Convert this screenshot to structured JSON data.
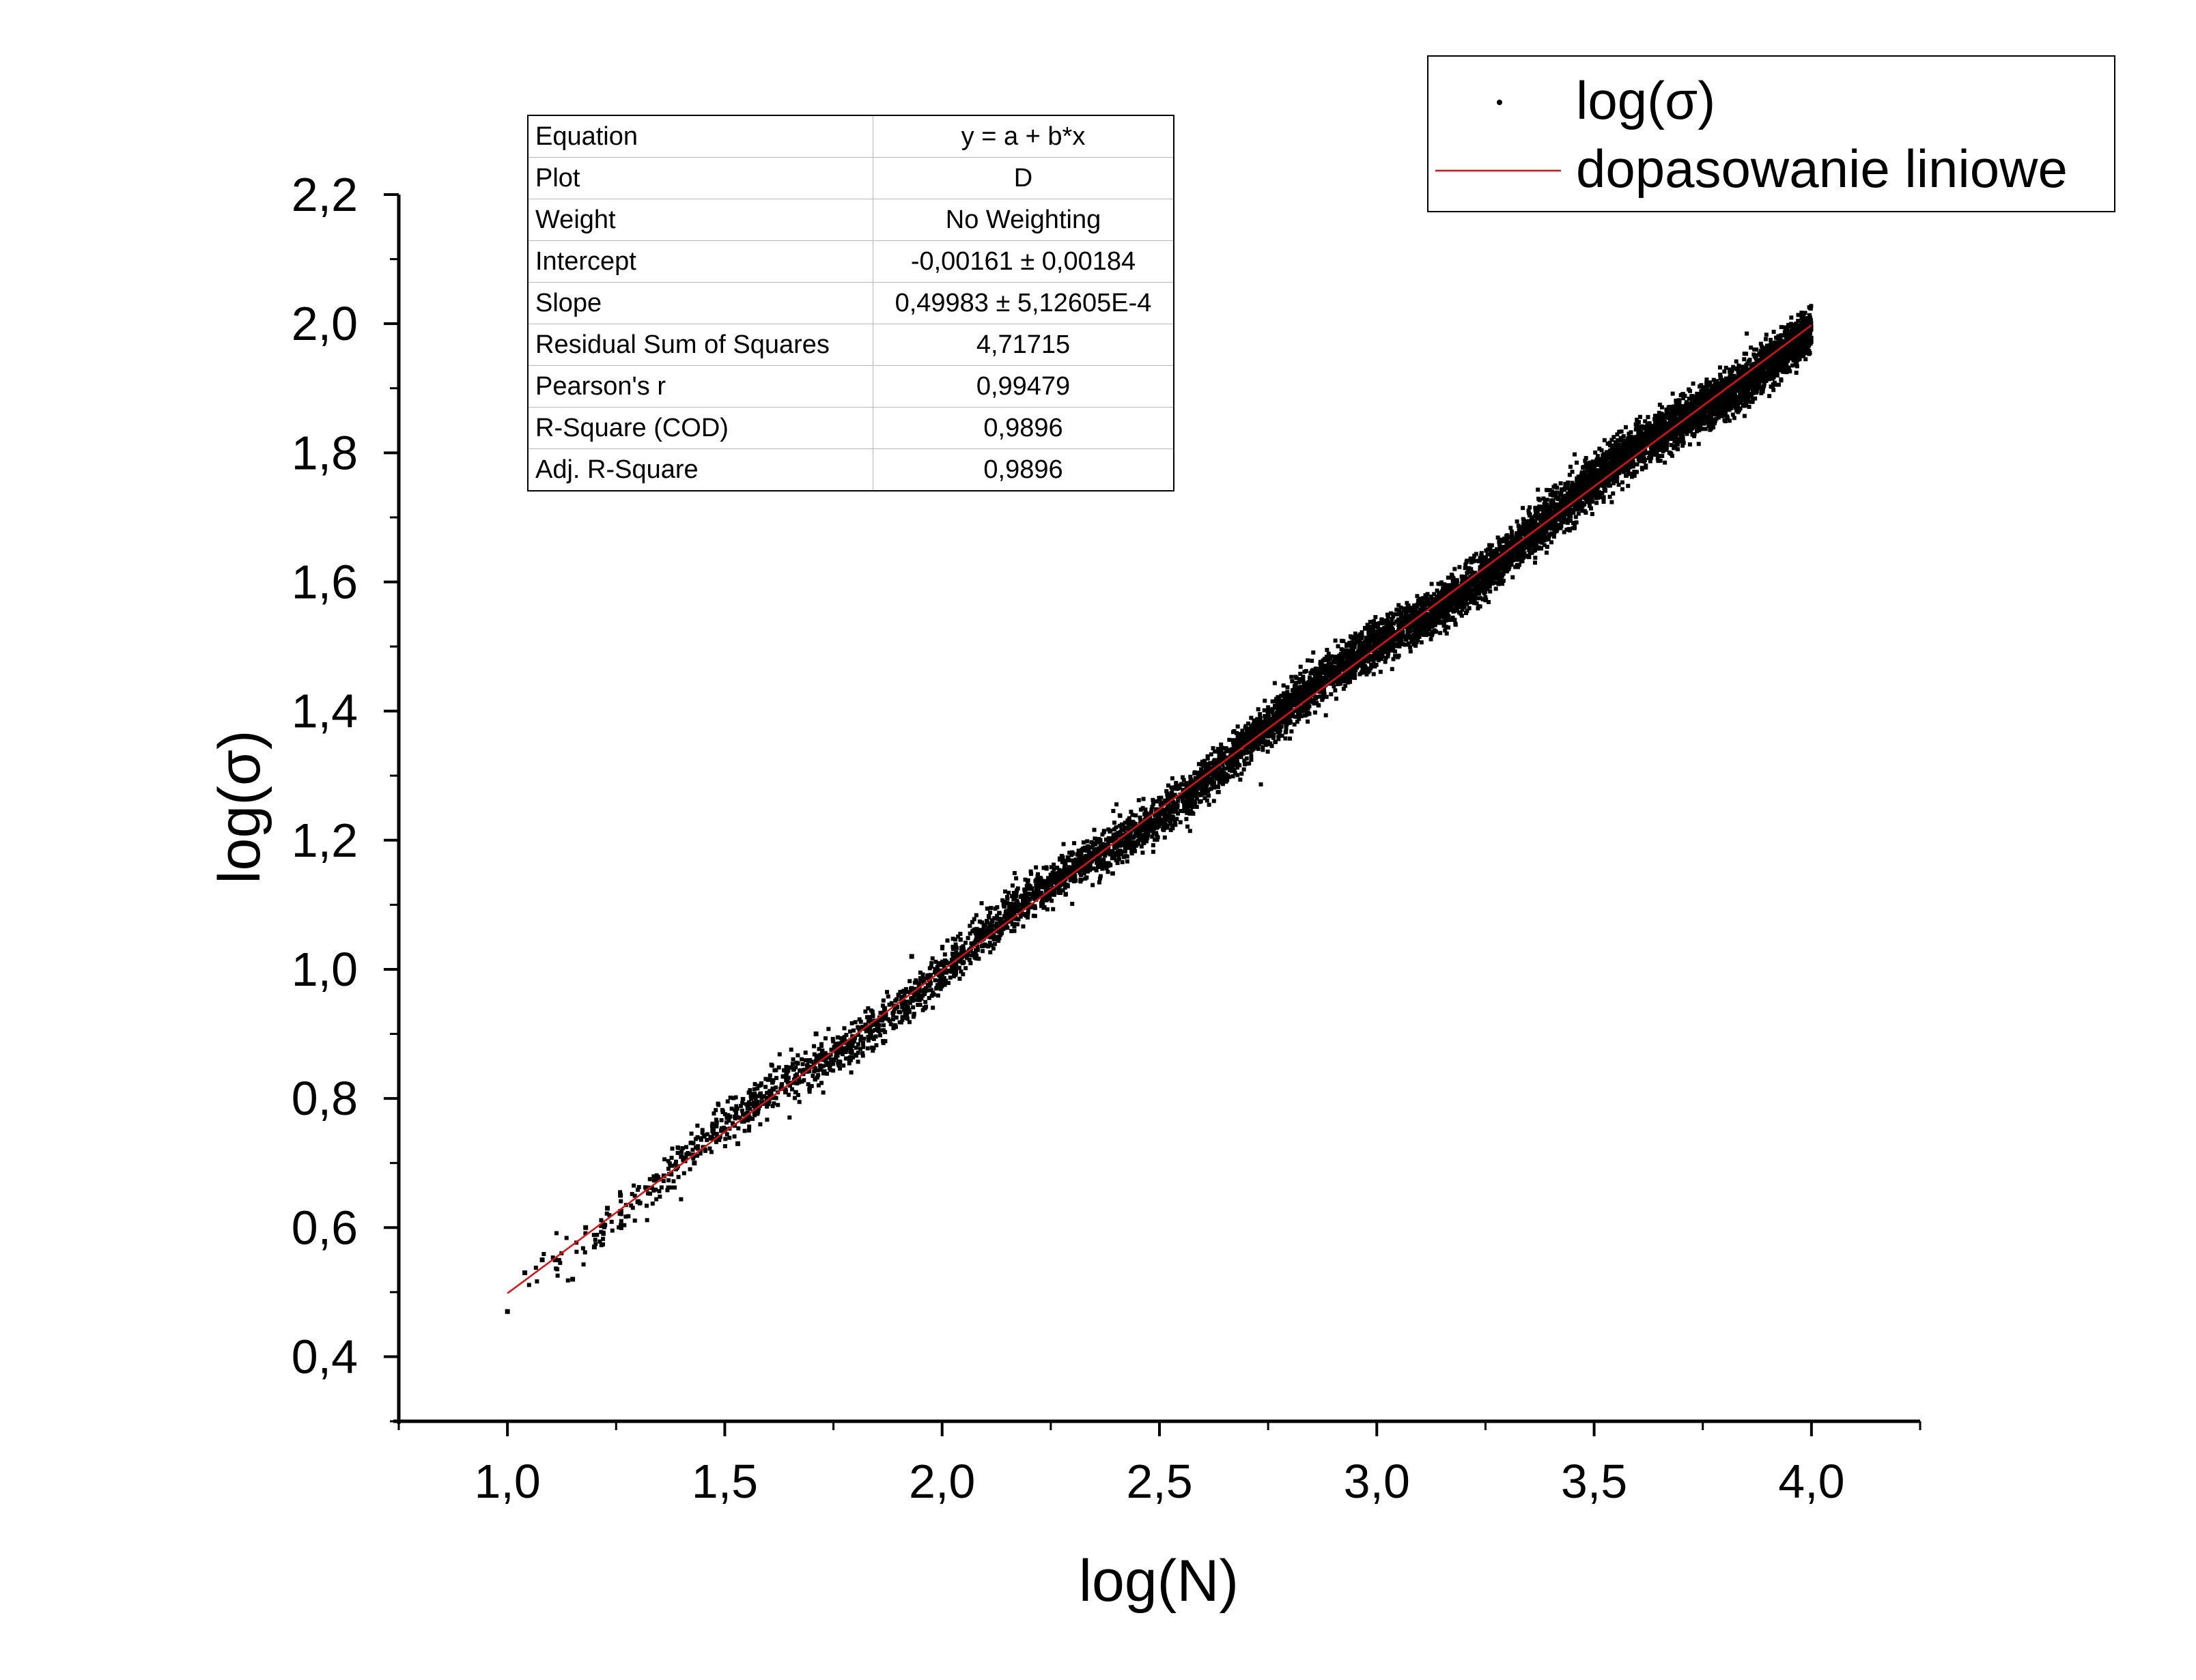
{
  "chart_data": {
    "type": "scatter",
    "xlabel": "log(N)",
    "ylabel": "log(σ)",
    "xlim": [
      0.75,
      4.25
    ],
    "ylim": [
      0.3,
      2.2
    ],
    "x_ticks": [
      1.0,
      1.5,
      2.0,
      2.5,
      3.0,
      3.5,
      4.0
    ],
    "x_tick_labels": [
      "1,0",
      "1,5",
      "2,0",
      "2,5",
      "3,0",
      "3,5",
      "4,0"
    ],
    "y_ticks": [
      0.4,
      0.6,
      0.8,
      1.0,
      1.2,
      1.4,
      1.6,
      1.8,
      2.0,
      2.2
    ],
    "y_tick_labels": [
      "0,4",
      "0,6",
      "0,8",
      "1,0",
      "1,2",
      "1,4",
      "1,6",
      "1,8",
      "2,0",
      "2,2"
    ],
    "grid": false,
    "legend_position": "top-right",
    "series": [
      {
        "name": "log(σ)",
        "kind": "scatter",
        "color": "#000000",
        "sample_points": [
          [
            1.0,
            0.47
          ],
          [
            1.04,
            0.53
          ],
          [
            1.08,
            0.55
          ],
          [
            1.11,
            0.55
          ],
          [
            1.15,
            0.52
          ],
          [
            1.18,
            0.6
          ],
          [
            1.2,
            0.57
          ],
          [
            1.23,
            0.63
          ],
          [
            1.26,
            0.65
          ],
          [
            1.3,
            0.64
          ],
          [
            1.32,
            0.66
          ],
          [
            1.36,
            0.68
          ],
          [
            1.4,
            0.71
          ],
          [
            1.43,
            0.7
          ],
          [
            1.47,
            0.74
          ],
          [
            1.5,
            0.75
          ],
          [
            1.53,
            0.73
          ],
          [
            1.57,
            0.78
          ],
          [
            1.6,
            0.8
          ],
          [
            1.64,
            0.81
          ],
          [
            1.68,
            0.84
          ],
          [
            1.71,
            0.9
          ],
          [
            1.75,
            0.86
          ],
          [
            1.79,
            0.89
          ],
          [
            1.83,
            0.91
          ],
          [
            1.87,
            0.93
          ],
          [
            1.9,
            0.96
          ],
          [
            1.93,
            1.02
          ],
          [
            1.96,
            0.94
          ],
          [
            2.0,
            0.99
          ],
          [
            2.04,
            1.02
          ],
          [
            2.08,
            1.05
          ],
          [
            2.12,
            1.06
          ],
          [
            2.16,
            1.09
          ],
          [
            2.2,
            1.1
          ],
          [
            2.24,
            1.12
          ],
          [
            2.28,
            1.15
          ],
          [
            2.32,
            1.16
          ],
          [
            2.36,
            1.18
          ],
          [
            2.4,
            1.2
          ]
        ]
      },
      {
        "name": "dopasowanie liniowe",
        "kind": "line",
        "color": "#e01010",
        "intercept": -0.00161,
        "slope": 0.49983,
        "x_range": [
          1.0,
          4.0
        ]
      }
    ],
    "scatter_cloud": {
      "x_from": 1.0,
      "x_to": 4.0,
      "count": 9000,
      "residual_sd": 0.017,
      "y_max_seen": 2.07,
      "y_min_seen": 0.47
    }
  },
  "fit_table": [
    {
      "label": "Equation",
      "value": "y = a + b*x"
    },
    {
      "label": "Plot",
      "value": "D"
    },
    {
      "label": "Weight",
      "value": "No Weighting"
    },
    {
      "label": "Intercept",
      "value": "-0,00161 ± 0,00184"
    },
    {
      "label": "Slope",
      "value": "0,49983 ± 5,12605E-4"
    },
    {
      "label": "Residual Sum of Squares",
      "value": "4,71715"
    },
    {
      "label": "Pearson's r",
      "value": "0,99479"
    },
    {
      "label": "R-Square (COD)",
      "value": "0,9896"
    },
    {
      "label": "Adj. R-Square",
      "value": "0,9896"
    }
  ]
}
